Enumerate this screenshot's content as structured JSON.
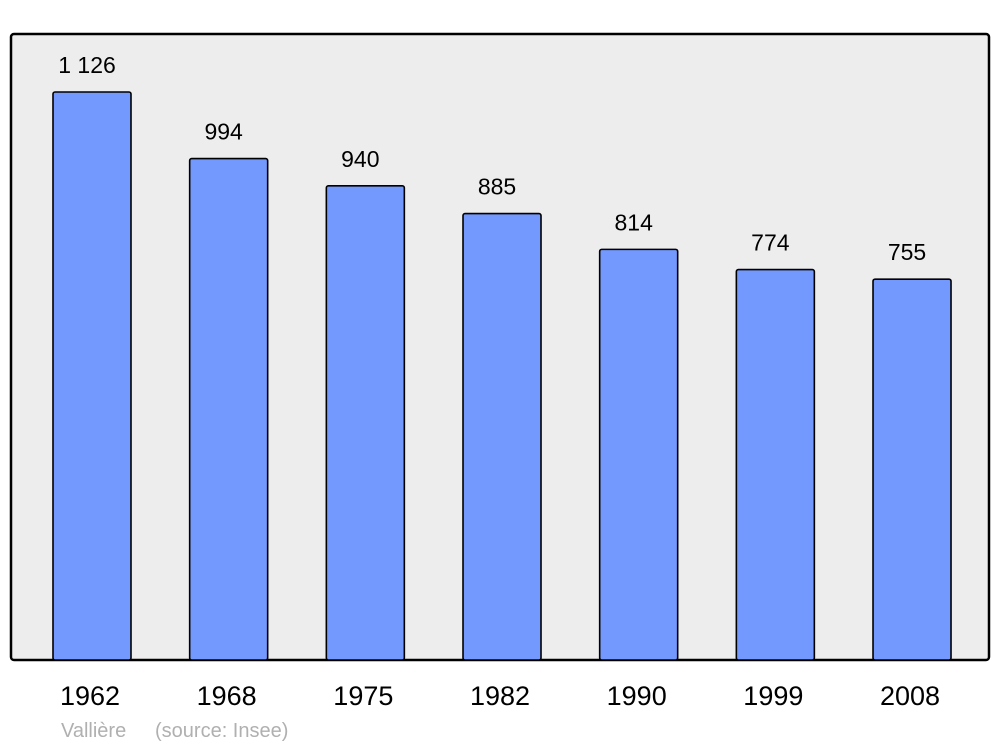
{
  "chart_data": {
    "type": "bar",
    "categories": [
      "1962",
      "1968",
      "1975",
      "1982",
      "1990",
      "1999",
      "2008"
    ],
    "values": [
      1126,
      994,
      940,
      885,
      814,
      774,
      755
    ],
    "value_labels": [
      "1 126",
      "994",
      "940",
      "885",
      "814",
      "774",
      "755"
    ],
    "title": "",
    "xlabel": "",
    "ylabel": "",
    "ylim": [
      0,
      1240
    ],
    "grid": false,
    "colors": {
      "bar": "#7399ff",
      "plot_background": "#ededed",
      "border": "#000000",
      "footer_text": "#b0b0b0"
    }
  },
  "footer": {
    "place": "Vallière",
    "source": "(source: Insee)"
  }
}
